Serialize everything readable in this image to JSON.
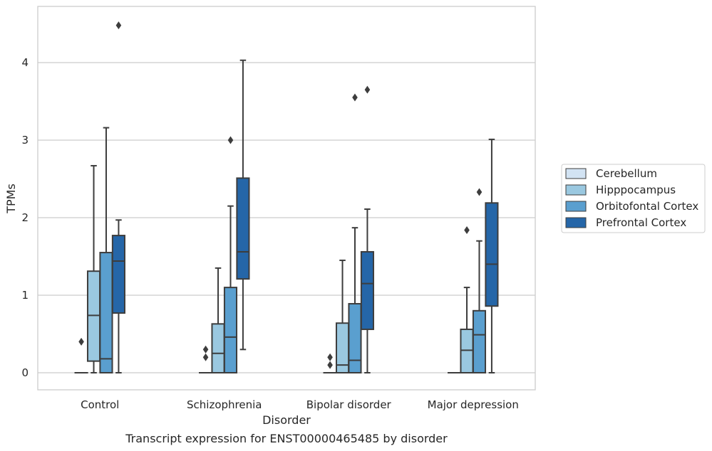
{
  "chart_data": {
    "type": "box",
    "title": "",
    "caption": "Transcript expression for ENST00000465485 by disorder",
    "xlabel": "Disorder",
    "ylabel": "TPMs",
    "ylim": [
      -0.22,
      4.7
    ],
    "yticks": [
      0,
      1,
      2,
      3,
      4
    ],
    "grid": "horizontal",
    "legend_position": "right",
    "categories": [
      "Control",
      "Schizophrenia",
      "Bipolar disorder",
      "Major depression"
    ],
    "series": [
      {
        "name": "Cerebellum",
        "color": "#d2e3f3",
        "boxes": [
          {
            "min": 0,
            "q1": 0,
            "median": 0,
            "q3": 0,
            "max": 0,
            "outliers": [
              0.4
            ]
          },
          {
            "min": 0,
            "q1": 0,
            "median": 0,
            "q3": 0,
            "max": 0,
            "outliers": [
              0.2,
              0.3
            ]
          },
          {
            "min": 0,
            "q1": 0,
            "median": 0,
            "q3": 0,
            "max": 0,
            "outliers": [
              0.1,
              0.2
            ]
          },
          {
            "min": 0,
            "q1": 0,
            "median": 0,
            "q3": 0,
            "max": 0,
            "outliers": []
          }
        ]
      },
      {
        "name": "Hipppocampus",
        "color": "#9ac8e0",
        "boxes": [
          {
            "min": 0,
            "q1": 0.15,
            "median": 0.74,
            "q3": 1.31,
            "max": 2.67,
            "outliers": []
          },
          {
            "min": 0,
            "q1": 0,
            "median": 0.25,
            "q3": 0.63,
            "max": 1.35,
            "outliers": []
          },
          {
            "min": 0,
            "q1": 0,
            "median": 0.1,
            "q3": 0.64,
            "max": 1.45,
            "outliers": []
          },
          {
            "min": 0,
            "q1": 0,
            "median": 0.29,
            "q3": 0.56,
            "max": 1.1,
            "outliers": [
              1.84
            ]
          }
        ]
      },
      {
        "name": "Orbitofontal Cortex",
        "color": "#5a9fcf",
        "boxes": [
          {
            "min": 0,
            "q1": 0,
            "median": 0.18,
            "q3": 1.55,
            "max": 3.16,
            "outliers": []
          },
          {
            "min": 0,
            "q1": 0,
            "median": 0.46,
            "q3": 1.1,
            "max": 2.15,
            "outliers": [
              3.0
            ]
          },
          {
            "min": 0,
            "q1": 0,
            "median": 0.16,
            "q3": 0.89,
            "max": 1.87,
            "outliers": [
              3.55
            ]
          },
          {
            "min": 0,
            "q1": 0,
            "median": 0.49,
            "q3": 0.8,
            "max": 1.7,
            "outliers": [
              2.33
            ]
          }
        ]
      },
      {
        "name": "Prefrontal Cortex",
        "color": "#2566a8",
        "boxes": [
          {
            "min": 0,
            "q1": 0.77,
            "median": 1.44,
            "q3": 1.77,
            "max": 1.97,
            "outliers": [
              4.48
            ]
          },
          {
            "min": 0.3,
            "q1": 1.21,
            "median": 1.56,
            "q3": 2.51,
            "max": 4.03,
            "outliers": []
          },
          {
            "min": 0,
            "q1": 0.56,
            "median": 1.15,
            "q3": 1.56,
            "max": 2.11,
            "outliers": [
              3.65
            ]
          },
          {
            "min": 0,
            "q1": 0.86,
            "median": 1.4,
            "q3": 2.19,
            "max": 3.01,
            "outliers": []
          }
        ]
      }
    ]
  }
}
